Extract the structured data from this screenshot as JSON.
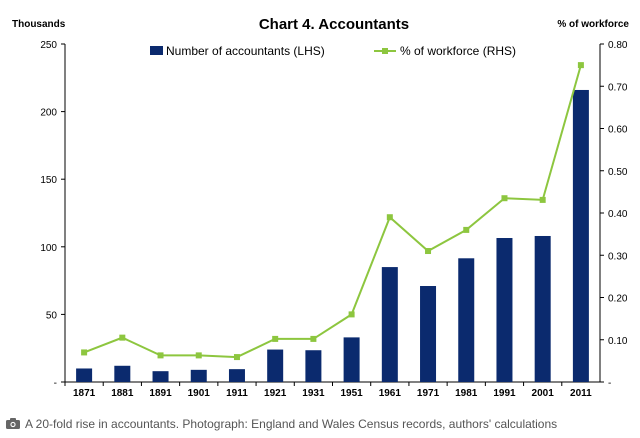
{
  "chart_data": {
    "type": "bar+line",
    "title": "Chart 4. Accountants",
    "left_axis_label": "Thousands",
    "right_axis_label": "% of workforce",
    "categories": [
      "1871",
      "1881",
      "1891",
      "1901",
      "1911",
      "1921",
      "1931",
      "1951",
      "1961",
      "1971",
      "1981",
      "1991",
      "2001",
      "2011"
    ],
    "series": [
      {
        "name": "Number of accountants (LHS)",
        "type": "bar",
        "axis": "left",
        "color": "#0b2a6e",
        "values": [
          10,
          12,
          8,
          9,
          9.5,
          24,
          23.5,
          33,
          85,
          71,
          91.5,
          106.5,
          108,
          216
        ]
      },
      {
        "name": "% of workforce (RHS)",
        "type": "line",
        "axis": "right",
        "color": "#8dc63f",
        "values": [
          0.07,
          0.105,
          0.063,
          0.063,
          0.059,
          0.102,
          0.102,
          0.16,
          0.39,
          0.31,
          0.36,
          0.435,
          0.431,
          0.75
        ]
      }
    ],
    "left_ylim": [
      0,
      250
    ],
    "left_yticks": [
      {
        "value": 0,
        "label": "-"
      },
      {
        "value": 50,
        "label": "50"
      },
      {
        "value": 100,
        "label": "100"
      },
      {
        "value": 150,
        "label": "150"
      },
      {
        "value": 200,
        "label": "200"
      },
      {
        "value": 250,
        "label": "250"
      }
    ],
    "right_ylim": [
      0,
      0.8
    ],
    "right_yticks": [
      {
        "value": 0,
        "label": "-"
      },
      {
        "value": 0.1,
        "label": "0.10"
      },
      {
        "value": 0.2,
        "label": "0.20"
      },
      {
        "value": 0.3,
        "label": "0.30"
      },
      {
        "value": 0.4,
        "label": "0.40"
      },
      {
        "value": 0.5,
        "label": "0.50"
      },
      {
        "value": 0.6,
        "label": "0.60"
      },
      {
        "value": 0.7,
        "label": "0.70"
      },
      {
        "value": 0.8,
        "label": "0.80"
      }
    ],
    "legend_position": "top-center",
    "grid": false
  },
  "caption": {
    "icon": "camera-icon",
    "text": "A 20-fold rise in accountants. Photograph: England and Wales Census records, authors' calculations"
  }
}
